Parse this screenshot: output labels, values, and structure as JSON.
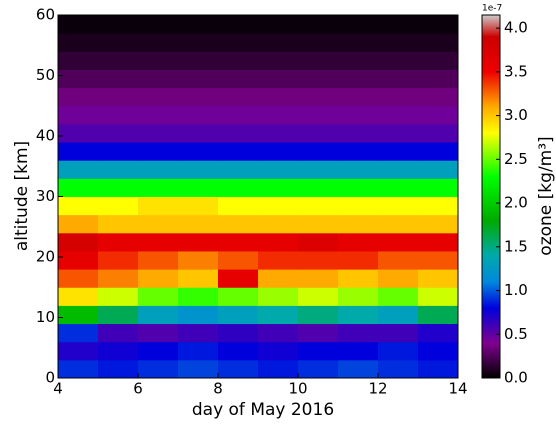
{
  "chart_data": {
    "type": "heatmap",
    "xlabel": "day of May 2016",
    "ylabel": "altitude [km]",
    "colorbar_label": "ozone [kg/m³]",
    "colorbar_offset": "1e-7",
    "xbins": [
      4,
      5,
      6,
      7,
      8,
      9,
      10,
      11,
      12,
      13,
      14
    ],
    "ybins": [
      0,
      3,
      6,
      9,
      12,
      15,
      18,
      21,
      24,
      27,
      30,
      33,
      36,
      39,
      42,
      45,
      48,
      51,
      54,
      57,
      60
    ],
    "z": [
      [
        0.9,
        0.85,
        0.9,
        0.95,
        0.9,
        0.85,
        0.9,
        0.95,
        0.9,
        0.85
      ],
      [
        0.7,
        0.75,
        0.8,
        0.85,
        0.8,
        0.75,
        0.8,
        0.8,
        0.85,
        0.8
      ],
      [
        0.9,
        0.6,
        0.55,
        0.6,
        0.65,
        0.6,
        0.55,
        0.6,
        0.6,
        0.7
      ],
      [
        1.9,
        1.6,
        1.3,
        1.2,
        1.3,
        1.4,
        1.5,
        1.4,
        1.3,
        1.6
      ],
      [
        2.9,
        2.7,
        2.5,
        2.4,
        2.5,
        2.6,
        2.7,
        2.6,
        2.5,
        2.7
      ],
      [
        3.3,
        3.2,
        3.1,
        3.0,
        3.6,
        3.1,
        3.1,
        3.0,
        3.1,
        3.0
      ],
      [
        3.6,
        3.4,
        3.3,
        3.2,
        3.3,
        3.4,
        3.4,
        3.4,
        3.3,
        3.3
      ],
      [
        3.8,
        3.6,
        3.6,
        3.6,
        3.6,
        3.6,
        3.7,
        3.6,
        3.6,
        3.6
      ],
      [
        3.1,
        3.0,
        3.0,
        3.0,
        3.0,
        3.0,
        3.0,
        3.0,
        3.0,
        3.0
      ],
      [
        2.8,
        2.8,
        2.9,
        2.9,
        2.8,
        2.8,
        2.8,
        2.8,
        2.8,
        2.8
      ],
      [
        2.3,
        2.3,
        2.3,
        2.3,
        2.3,
        2.3,
        2.3,
        2.3,
        2.3,
        2.3
      ],
      [
        1.3,
        1.3,
        1.3,
        1.3,
        1.3,
        1.3,
        1.3,
        1.3,
        1.3,
        1.3
      ],
      [
        0.8,
        0.8,
        0.8,
        0.8,
        0.8,
        0.8,
        0.8,
        0.8,
        0.8,
        0.8
      ],
      [
        0.55,
        0.55,
        0.55,
        0.55,
        0.55,
        0.55,
        0.55,
        0.55,
        0.55,
        0.55
      ],
      [
        0.45,
        0.45,
        0.45,
        0.45,
        0.45,
        0.45,
        0.45,
        0.45,
        0.45,
        0.45
      ],
      [
        0.35,
        0.35,
        0.35,
        0.35,
        0.35,
        0.35,
        0.35,
        0.35,
        0.35,
        0.35
      ],
      [
        0.25,
        0.25,
        0.25,
        0.25,
        0.25,
        0.25,
        0.25,
        0.25,
        0.25,
        0.25
      ],
      [
        0.15,
        0.15,
        0.15,
        0.15,
        0.15,
        0.15,
        0.15,
        0.15,
        0.15,
        0.15
      ],
      [
        0.08,
        0.08,
        0.08,
        0.08,
        0.08,
        0.08,
        0.08,
        0.08,
        0.08,
        0.08
      ],
      [
        0.03,
        0.03,
        0.03,
        0.03,
        0.03,
        0.03,
        0.03,
        0.03,
        0.03,
        0.03
      ]
    ],
    "xlim": [
      4,
      14
    ],
    "xticks": [
      4,
      6,
      8,
      10,
      12,
      14
    ],
    "ylim": [
      0,
      60
    ],
    "yticks": [
      0,
      10,
      20,
      30,
      40,
      50,
      60
    ],
    "clim": [
      0,
      4.15
    ],
    "cticks": [
      {
        "value": 0,
        "label": "0.0"
      },
      {
        "value": 0.5,
        "label": "0.5"
      },
      {
        "value": 1,
        "label": "1.0"
      },
      {
        "value": 1.5,
        "label": "1.5"
      },
      {
        "value": 2,
        "label": "2.0"
      },
      {
        "value": 2.5,
        "label": "2.5"
      },
      {
        "value": 3,
        "label": "3.0"
      },
      {
        "value": 3.5,
        "label": "3.5"
      },
      {
        "value": 4,
        "label": "4.0"
      }
    ],
    "colormap": [
      {
        "value": 0,
        "color": "#000000"
      },
      {
        "value": 0.4,
        "color": "#800090"
      },
      {
        "value": 0.8,
        "color": "#0000dd"
      },
      {
        "value": 1.1,
        "color": "#0088dd"
      },
      {
        "value": 1.4,
        "color": "#00aaaa"
      },
      {
        "value": 1.8,
        "color": "#00aa00"
      },
      {
        "value": 2.3,
        "color": "#00ff00"
      },
      {
        "value": 2.8,
        "color": "#ffff00"
      },
      {
        "value": 3.1,
        "color": "#ffaa00"
      },
      {
        "value": 3.5,
        "color": "#ee0000"
      },
      {
        "value": 3.9,
        "color": "#cc0000"
      },
      {
        "value": 4.15,
        "color": "#cccccc"
      }
    ]
  }
}
